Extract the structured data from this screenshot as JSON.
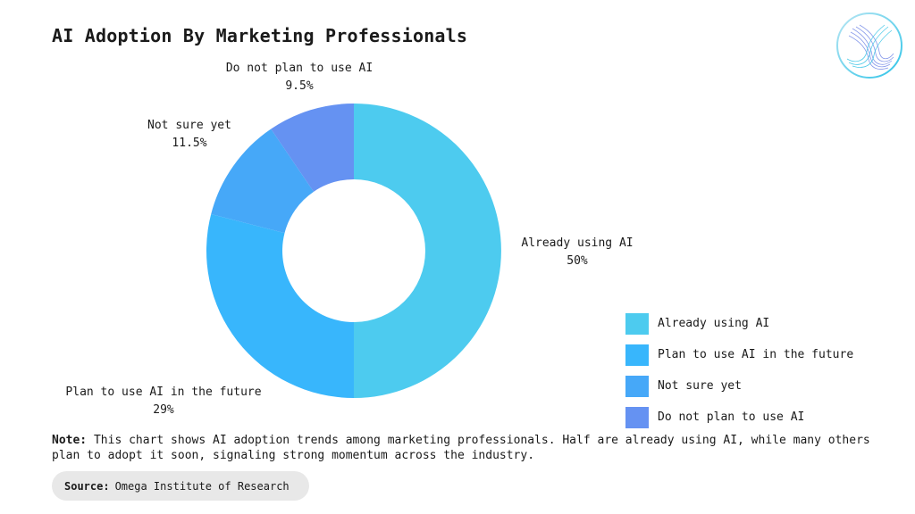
{
  "title": "AI Adoption By Marketing Professionals",
  "logo": {
    "icon": "omega-institute-logo-icon"
  },
  "chart_data": {
    "type": "pie",
    "variant": "donut",
    "categories": [
      "Already using AI",
      "Plan to use AI in the future",
      "Not sure yet",
      "Do not plan to use AI"
    ],
    "values": [
      50,
      29,
      11.5,
      9.5
    ],
    "value_labels": [
      "50%",
      "29%",
      "11.5%",
      "9.5%"
    ],
    "colors": [
      "#4dcbef",
      "#38b6fc",
      "#46a8f8",
      "#6592f2"
    ],
    "legend": {
      "position": "bottom-right"
    }
  },
  "note": {
    "label": "Note:",
    "text": "This chart shows AI adoption trends among marketing professionals. Half are already using AI, while many others plan to adopt it soon, signaling strong momentum across the industry."
  },
  "source": {
    "label": "Source:",
    "text": "Omega Institute of Research"
  }
}
